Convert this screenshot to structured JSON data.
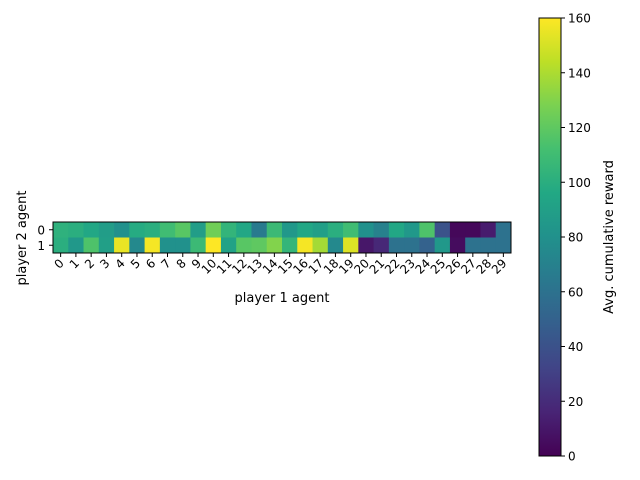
{
  "chart_data": {
    "type": "heatmap",
    "title": "",
    "xlabel": "player 1 agent",
    "ylabel": "player 2 agent",
    "x_categories": [
      "0",
      "1",
      "2",
      "3",
      "4",
      "5",
      "6",
      "7",
      "8",
      "9",
      "10",
      "11",
      "12",
      "13",
      "14",
      "15",
      "16",
      "17",
      "18",
      "19",
      "20",
      "21",
      "22",
      "23",
      "24",
      "25",
      "26",
      "27",
      "28",
      "29"
    ],
    "y_categories": [
      "0",
      "1"
    ],
    "x_tick_rotation_deg": 45,
    "values": [
      [
        102,
        100,
        95,
        88,
        80,
        98,
        100,
        110,
        118,
        88,
        125,
        104,
        95,
        65,
        108,
        85,
        95,
        90,
        100,
        110,
        80,
        70,
        95,
        85,
        115,
        40,
        3,
        3,
        12,
        60
      ],
      [
        100,
        85,
        115,
        90,
        155,
        75,
        158,
        80,
        80,
        108,
        160,
        92,
        118,
        120,
        130,
        105,
        158,
        138,
        75,
        152,
        10,
        18,
        60,
        60,
        50,
        85,
        5,
        60,
        60,
        60
      ]
    ],
    "colormap": "viridis",
    "colorbar": {
      "label": "Avg. cumulative reward",
      "vmin": 0,
      "vmax": 160,
      "ticks": [
        "0",
        "20",
        "40",
        "60",
        "80",
        "100",
        "120",
        "140",
        "160"
      ]
    },
    "grid": false,
    "legend": "none"
  }
}
